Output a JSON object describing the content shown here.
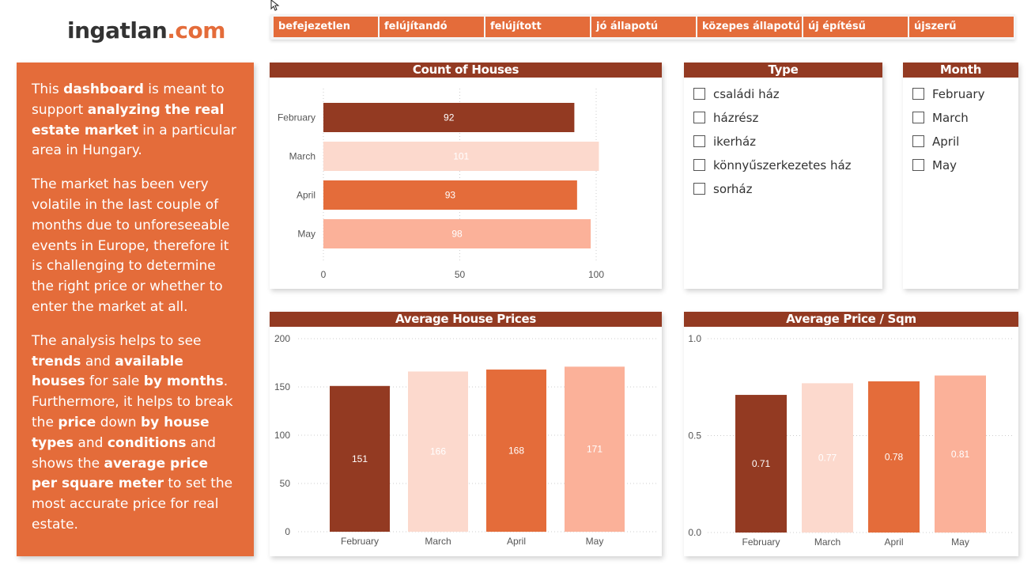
{
  "logo": {
    "name": "ingatlan",
    "tld": ".com"
  },
  "conditions": [
    "befejezetlen",
    "felújítandó",
    "felújított",
    "jó állapotú",
    "közepes állapotú",
    "új építésű",
    "újszerű"
  ],
  "description": {
    "p1": [
      "This ",
      "dashboard",
      " is meant to support ",
      "analyzing the real estate market",
      " in a particular area in Hungary."
    ],
    "p2": "The market has been very volatile in the last couple of months due to unforeseeable events in Europe, therefore it is challenging to determine the right price or whether to enter the market at all.",
    "p3": [
      "The analysis helps to see ",
      "trends",
      " and ",
      "available houses",
      " for sale ",
      "by months",
      ". Furthermore, it helps to break the ",
      "price",
      " down ",
      "by house types",
      " and ",
      "conditions",
      " and shows the ",
      "average price per square meter",
      " to set the most accurate price for real estate."
    ]
  },
  "colors": {
    "dark": "#933a22",
    "light": "#fcd9cd",
    "mid": "#e46c3a",
    "pale": "#fbb199",
    "accent": "#e46c3a"
  },
  "slicers": {
    "type": {
      "title": "Type",
      "items": [
        "családi ház",
        "házrész",
        "ikerház",
        "könnyűszerkezetes ház",
        "sorház"
      ]
    },
    "month": {
      "title": "Month",
      "items": [
        "February",
        "March",
        "April",
        "May"
      ]
    }
  },
  "chart_data": [
    {
      "type": "bar",
      "orientation": "horizontal",
      "title": "Count of Houses",
      "categories": [
        "February",
        "March",
        "April",
        "May"
      ],
      "values": [
        92,
        101,
        93,
        98
      ],
      "xlim": [
        0,
        105
      ],
      "ticks": [
        0,
        50,
        100
      ],
      "grid": true
    },
    {
      "type": "bar",
      "title": "Average House Prices",
      "categories": [
        "February",
        "March",
        "April",
        "May"
      ],
      "values": [
        151,
        166,
        168,
        171
      ],
      "ylim": [
        0,
        200
      ],
      "ticks": [
        0,
        50,
        100,
        150,
        200
      ],
      "grid": true
    },
    {
      "type": "bar",
      "title": "Average Price / Sqm",
      "categories": [
        "February",
        "March",
        "April",
        "May"
      ],
      "values": [
        0.71,
        0.77,
        0.78,
        0.81
      ],
      "ylim": [
        0,
        1.0
      ],
      "ticks": [
        "0.0",
        "0.5",
        "1.0"
      ],
      "grid": true
    }
  ]
}
